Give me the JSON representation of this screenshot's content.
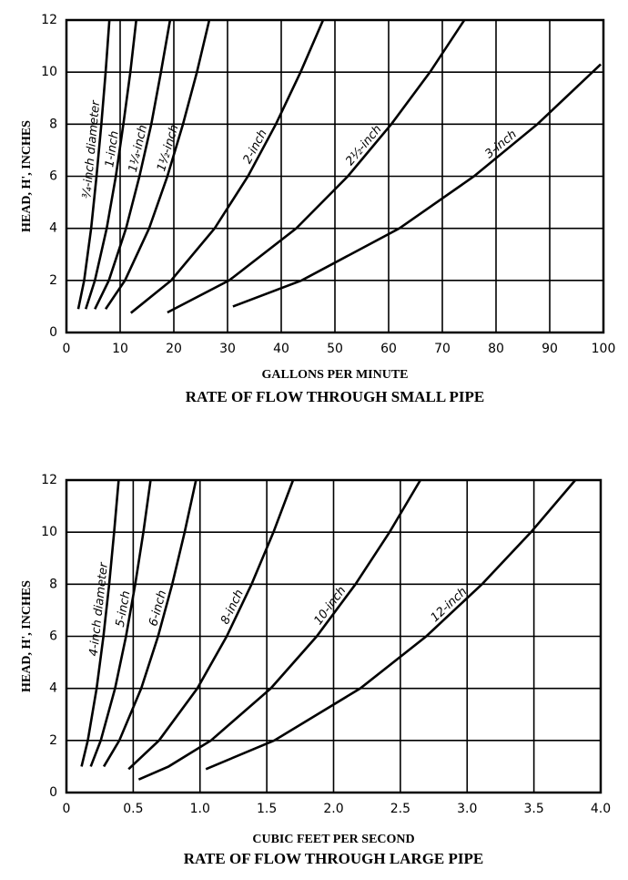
{
  "chart_data": [
    {
      "type": "line",
      "title": "RATE OF FLOW THROUGH SMALL PIPE",
      "x_label": "GALLONS PER MINUTE",
      "y_label": "HEAD, H', INCHES",
      "xlim": [
        0,
        100
      ],
      "ylim": [
        0,
        12
      ],
      "xticks": [
        0,
        10,
        20,
        30,
        40,
        50,
        60,
        70,
        80,
        90,
        100
      ],
      "yticks": [
        0,
        2,
        4,
        6,
        8,
        10,
        12
      ],
      "grid": true,
      "series": [
        {
          "name": "¾-inch diameter",
          "color": "#000000",
          "x": [
            2.2,
            3.3,
            4.6,
            5.6,
            6.5,
            7.3,
            8.0
          ],
          "values": [
            0.9,
            2,
            4,
            6,
            8,
            10,
            12
          ]
        },
        {
          "name": "1-inch",
          "color": "#000000",
          "x": [
            3.6,
            5.3,
            7.5,
            9.2,
            10.6,
            11.9,
            13.0
          ],
          "values": [
            0.9,
            2,
            4,
            6,
            8,
            10,
            12
          ]
        },
        {
          "name": "1¼-inch",
          "color": "#000000",
          "x": [
            5.3,
            7.9,
            11.1,
            13.6,
            15.8,
            17.6,
            19.3
          ],
          "values": [
            0.9,
            2,
            4,
            6,
            8,
            10,
            12
          ]
        },
        {
          "name": "1½-inch",
          "color": "#000000",
          "x": [
            7.3,
            10.9,
            15.4,
            18.8,
            21.7,
            24.3,
            26.6
          ],
          "values": [
            0.9,
            2,
            4,
            6,
            8,
            10,
            12
          ]
        },
        {
          "name": "2-inch",
          "color": "#000000",
          "x": [
            12.0,
            19.5,
            27.6,
            33.8,
            39.0,
            43.6,
            47.8
          ],
          "values": [
            0.75,
            2,
            4,
            6,
            8,
            10,
            12
          ]
        },
        {
          "name": "2½-inch",
          "color": "#000000",
          "x": [
            18.8,
            30.3,
            42.8,
            52.4,
            60.5,
            67.7,
            74.1
          ],
          "values": [
            0.77,
            2,
            4,
            6,
            8,
            10,
            12
          ]
        },
        {
          "name": "3-inch",
          "color": "#000000",
          "x": [
            31,
            43.8,
            62,
            75.9,
            87.7,
            99.5
          ],
          "values": [
            1,
            2,
            4,
            6,
            8,
            10.3
          ]
        }
      ]
    },
    {
      "type": "line",
      "title": "RATE OF FLOW THROUGH LARGE PIPE",
      "x_label": "CUBIC FEET PER SECOND",
      "y_label": "HEAD, H', INCHES",
      "xlim": [
        0,
        4
      ],
      "ylim": [
        0,
        12
      ],
      "xticks": [
        0,
        0.5,
        {
          "value": 1,
          "label": "1.0"
        },
        1.5,
        {
          "value": 2,
          "label": "2.0"
        },
        2.5,
        {
          "value": 3,
          "label": "3.0"
        },
        3.5,
        {
          "value": 4,
          "label": "4.0"
        }
      ],
      "yticks": [
        0,
        2,
        4,
        6,
        8,
        10,
        12
      ],
      "grid": true,
      "series": [
        {
          "name": "4-inch diameter",
          "color": "#000000",
          "x": [
            0.113,
            0.16,
            0.226,
            0.277,
            0.32,
            0.357,
            0.391
          ],
          "values": [
            1,
            2,
            4,
            6,
            8,
            10,
            12
          ]
        },
        {
          "name": "5-inch",
          "color": "#000000",
          "x": [
            0.182,
            0.257,
            0.364,
            0.446,
            0.515,
            0.576,
            0.63
          ],
          "values": [
            1,
            2,
            4,
            6,
            8,
            10,
            12
          ]
        },
        {
          "name": "6-inch",
          "color": "#000000",
          "x": [
            0.28,
            0.396,
            0.56,
            0.686,
            0.792,
            0.885,
            0.97
          ],
          "values": [
            1,
            2,
            4,
            6,
            8,
            10,
            12
          ]
        },
        {
          "name": "8-inch",
          "color": "#000000",
          "x": [
            0.465,
            0.693,
            0.98,
            1.2,
            1.386,
            1.55,
            1.697
          ],
          "values": [
            0.9,
            2,
            4,
            6,
            8,
            10,
            12
          ]
        },
        {
          "name": "10-inch",
          "color": "#000000",
          "x": [
            0.541,
            0.765,
            1.082,
            1.53,
            1.874,
            2.164,
            2.419,
            2.65
          ],
          "values": [
            0.5,
            1,
            2,
            4,
            6,
            8,
            10,
            12
          ]
        },
        {
          "name": "12-inch",
          "color": "#000000",
          "x": [
            1.044,
            1.556,
            2.2,
            2.694,
            3.111,
            3.478,
            3.81
          ],
          "values": [
            0.9,
            2,
            4,
            6,
            8,
            10,
            12
          ]
        }
      ]
    }
  ]
}
